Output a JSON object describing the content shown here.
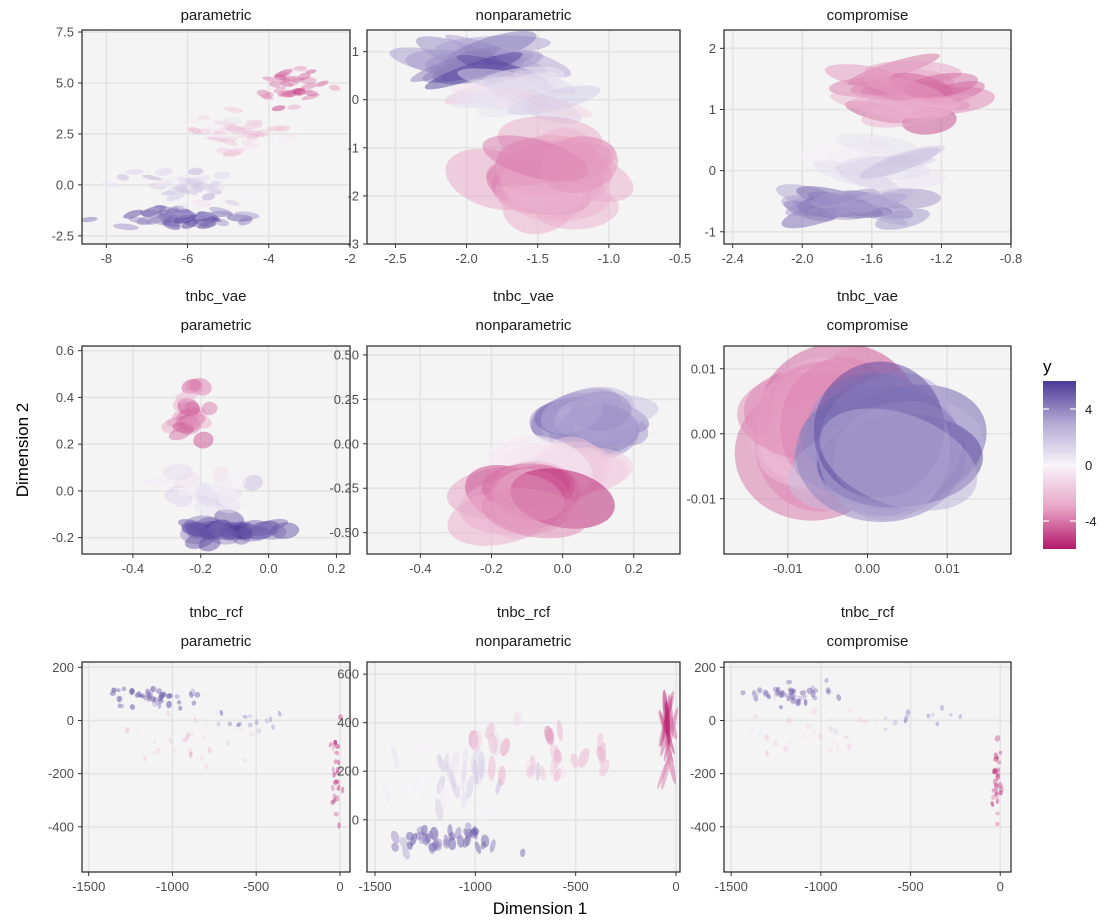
{
  "figure": {
    "xlabel": "Dimension 1",
    "ylabel": "Dimension 2",
    "legend": {
      "title": "y",
      "ticks": [
        "4",
        "0",
        "-4"
      ],
      "tick_values": [
        4,
        0,
        -4
      ],
      "range": [
        -6,
        6
      ],
      "colors": [
        "#b5186b",
        "#e8a6c6",
        "#f7f4f9",
        "#b3aad4",
        "#4b3a97"
      ]
    }
  },
  "chart_data": [
    {
      "type": "scatter",
      "title": "parametric",
      "xlim": [
        -8.6,
        -2
      ],
      "ylim": [
        -2.9,
        7.6
      ],
      "xticks": [
        -8,
        -6,
        -4,
        -2
      ],
      "xtick_labels": [
        "-8",
        "-6",
        "-4",
        "-2"
      ],
      "yticks": [
        -2.5,
        0,
        2.5,
        5,
        7.5
      ],
      "ytick_labels": [
        "-2.5",
        "0.0",
        "2.5",
        "5.0",
        "7.5"
      ],
      "clusters": [
        {
          "x": -6.2,
          "y": -1.6,
          "sx": 1.1,
          "sy": 0.35,
          "col": 4.5,
          "n": 45,
          "rx": 0.25,
          "ry": 0.17
        },
        {
          "x": -6.0,
          "y": 0.0,
          "sx": 1.0,
          "sy": 0.8,
          "col": 1.5,
          "n": 40,
          "rx": 0.2,
          "ry": 0.15
        },
        {
          "x": -4.8,
          "y": 2.5,
          "sx": 0.8,
          "sy": 0.8,
          "col": -1.5,
          "n": 35,
          "rx": 0.2,
          "ry": 0.14
        },
        {
          "x": -3.5,
          "y": 4.8,
          "sx": 0.6,
          "sy": 0.9,
          "col": -4,
          "n": 35,
          "rx": 0.18,
          "ry": 0.14
        }
      ]
    },
    {
      "type": "scatter",
      "title": "nonparametric",
      "xlim": [
        -2.7,
        -0.5
      ],
      "ylim": [
        -3,
        1.45
      ],
      "xticks": [
        -2.5,
        -2.0,
        -1.5,
        -1.0,
        -0.5
      ],
      "xtick_labels": [
        "-2.5",
        "-2.0",
        "-1.5",
        "-1.0",
        "-0.5"
      ],
      "yticks": [
        -3,
        -2,
        -1,
        0,
        1
      ],
      "ytick_labels": [
        "-3",
        "-2",
        "-1",
        "0",
        "1"
      ],
      "clusters": [
        {
          "x": -1.9,
          "y": 0.75,
          "sx": 0.28,
          "sy": 0.25,
          "col": 4,
          "n": 18,
          "rx": 0.34,
          "ry": 0.2
        },
        {
          "x": -1.6,
          "y": 0.1,
          "sx": 0.3,
          "sy": 0.3,
          "col": 0.5,
          "n": 14,
          "rx": 0.32,
          "ry": 0.22
        },
        {
          "x": -1.4,
          "y": -1.6,
          "sx": 0.22,
          "sy": 0.5,
          "col": -3,
          "n": 24,
          "rx": 0.32,
          "ry": 0.5
        }
      ]
    },
    {
      "type": "scatter",
      "title": "compromise",
      "xlim": [
        -2.45,
        -0.8
      ],
      "ylim": [
        -1.2,
        2.3
      ],
      "xticks": [
        -2.4,
        -2.0,
        -1.6,
        -1.2,
        -0.8
      ],
      "xtick_labels": [
        "-2.4",
        "-2.0",
        "-1.6",
        "-1.2",
        "-0.8"
      ],
      "yticks": [
        -1,
        0,
        1,
        2
      ],
      "ytick_labels": [
        "-1",
        "0",
        "1",
        "2"
      ],
      "clusters": [
        {
          "x": -1.8,
          "y": -0.6,
          "sx": 0.25,
          "sy": 0.2,
          "col": 4,
          "n": 22,
          "rx": 0.2,
          "ry": 0.14
        },
        {
          "x": -1.6,
          "y": 0.2,
          "sx": 0.25,
          "sy": 0.3,
          "col": 0.5,
          "n": 16,
          "rx": 0.2,
          "ry": 0.15
        },
        {
          "x": -1.4,
          "y": 1.3,
          "sx": 0.22,
          "sy": 0.4,
          "col": -3.5,
          "n": 22,
          "rx": 0.22,
          "ry": 0.18
        }
      ]
    },
    {
      "type": "scatter",
      "subtitle": "tnbc_vae",
      "title": "parametric",
      "xlim": [
        -0.55,
        0.24
      ],
      "ylim": [
        -0.27,
        0.62
      ],
      "xticks": [
        -0.4,
        -0.2,
        0.0,
        0.2
      ],
      "xtick_labels": [
        "-0.4",
        "-0.2",
        "0.0",
        "0.2"
      ],
      "yticks": [
        -0.2,
        0.0,
        0.2,
        0.4,
        0.6
      ],
      "ytick_labels": [
        "-0.2",
        "0.0",
        "0.2",
        "0.4",
        "0.6"
      ],
      "clusters": [
        {
          "x": -0.12,
          "y": -0.17,
          "sx": 0.12,
          "sy": 0.03,
          "col": 4.5,
          "n": 45,
          "rx": 0.04,
          "ry": 0.03
        },
        {
          "x": -0.18,
          "y": -0.02,
          "sx": 0.12,
          "sy": 0.07,
          "col": 0.5,
          "n": 35,
          "rx": 0.035,
          "ry": 0.03
        },
        {
          "x": -0.24,
          "y": 0.3,
          "sx": 0.05,
          "sy": 0.12,
          "col": -3.5,
          "n": 25,
          "rx": 0.03,
          "ry": 0.03
        }
      ]
    },
    {
      "type": "scatter",
      "subtitle": "tnbc_vae",
      "title": "nonparametric",
      "xlim": [
        -0.55,
        0.33
      ],
      "ylim": [
        -0.62,
        0.55
      ],
      "xticks": [
        -0.4,
        -0.2,
        0.0,
        0.2
      ],
      "xtick_labels": [
        "-0.4",
        "-0.2",
        "0.0",
        "0.2"
      ],
      "yticks": [
        -0.5,
        -0.25,
        0.0,
        0.25,
        0.5
      ],
      "ytick_labels": [
        "-0.50",
        "-0.25",
        "0.00",
        "0.25",
        "0.50"
      ],
      "clusters": [
        {
          "x": 0.08,
          "y": 0.15,
          "sx": 0.08,
          "sy": 0.1,
          "col": 3.5,
          "n": 16,
          "rx": 0.11,
          "ry": 0.13
        },
        {
          "x": -0.05,
          "y": -0.15,
          "sx": 0.12,
          "sy": 0.12,
          "col": -1,
          "n": 14,
          "rx": 0.12,
          "ry": 0.14
        },
        {
          "x": -0.1,
          "y": -0.3,
          "sx": 0.08,
          "sy": 0.08,
          "col": -3.5,
          "n": 12,
          "rx": 0.13,
          "ry": 0.14
        }
      ]
    },
    {
      "type": "scatter",
      "subtitle": "tnbc_vae",
      "title": "compromise",
      "xlim": [
        -0.018,
        0.018
      ],
      "ylim": [
        -0.0185,
        0.0135
      ],
      "xticks": [
        -0.01,
        0.0,
        0.01
      ],
      "xtick_labels": [
        "-0.01",
        "0.00",
        "0.01"
      ],
      "yticks": [
        -0.01,
        0.0,
        0.01
      ],
      "ytick_labels": [
        "-0.01",
        "0.00",
        "0.01"
      ],
      "clusters": [
        {
          "x": -0.004,
          "y": 0.002,
          "sx": 0.003,
          "sy": 0.003,
          "col": -3,
          "n": 14,
          "rx": 0.009,
          "ry": 0.009
        },
        {
          "x": 0.003,
          "y": -0.002,
          "sx": 0.003,
          "sy": 0.003,
          "col": 3.5,
          "n": 16,
          "rx": 0.009,
          "ry": 0.009
        }
      ]
    },
    {
      "type": "scatter",
      "subtitle": "tnbc_rcf",
      "title": "parametric",
      "xlim": [
        -1540,
        60
      ],
      "ylim": [
        -570,
        220
      ],
      "xticks": [
        -1500,
        -1000,
        -500,
        0
      ],
      "xtick_labels": [
        "-1500",
        "-1000",
        "-500",
        "0"
      ],
      "yticks": [
        -400,
        -200,
        0,
        200
      ],
      "ytick_labels": [
        "-400",
        "-200",
        "0",
        "200"
      ],
      "clusters": [
        {
          "x": -1150,
          "y": 90,
          "sx": 250,
          "sy": 35,
          "col": 4.5,
          "n": 45,
          "rx": 14,
          "ry": 11
        },
        {
          "x": -1000,
          "y": -80,
          "sx": 350,
          "sy": 90,
          "col": -1,
          "n": 35,
          "rx": 12,
          "ry": 10
        },
        {
          "x": -20,
          "y": -200,
          "sx": 25,
          "sy": 140,
          "col": -4.5,
          "n": 30,
          "rx": 12,
          "ry": 10
        },
        {
          "x": -500,
          "y": -10,
          "sx": 250,
          "sy": 40,
          "col": 3,
          "n": 14,
          "rx": 12,
          "ry": 9
        }
      ]
    },
    {
      "type": "scatter",
      "subtitle": "tnbc_rcf",
      "title": "nonparametric",
      "xlim": [
        -1540,
        20
      ],
      "ylim": [
        -215,
        650
      ],
      "xticks": [
        -1500,
        -1000,
        -500,
        0
      ],
      "xtick_labels": [
        "-1500",
        "-1000",
        "-500",
        "0"
      ],
      "yticks": [
        0,
        200,
        400,
        600
      ],
      "ytick_labels": [
        "0",
        "200",
        "400",
        "600"
      ],
      "clusters": [
        {
          "x": -1150,
          "y": -80,
          "sx": 250,
          "sy": 45,
          "col": 4.5,
          "n": 45,
          "rx": 16,
          "ry": 22
        },
        {
          "x": -1100,
          "y": 150,
          "sx": 250,
          "sy": 110,
          "col": 1,
          "n": 30,
          "rx": 16,
          "ry": 45
        },
        {
          "x": -650,
          "y": 280,
          "sx": 320,
          "sy": 110,
          "col": -2,
          "n": 28,
          "rx": 20,
          "ry": 40
        },
        {
          "x": -40,
          "y": 350,
          "sx": 15,
          "sy": 140,
          "col": -4.5,
          "n": 16,
          "rx": 12,
          "ry": 90
        }
      ]
    },
    {
      "type": "scatter",
      "subtitle": "tnbc_rcf",
      "title": "compromise",
      "xlim": [
        -1540,
        60
      ],
      "ylim": [
        -570,
        220
      ],
      "xticks": [
        -1500,
        -1000,
        -500,
        0
      ],
      "xtick_labels": [
        "-1500",
        "-1000",
        "-500",
        "0"
      ],
      "yticks": [
        -400,
        -200,
        0,
        200
      ],
      "ytick_labels": [
        "-400",
        "-200",
        "0",
        "200"
      ],
      "clusters": [
        {
          "x": -1150,
          "y": 100,
          "sx": 220,
          "sy": 30,
          "col": 4.5,
          "n": 45,
          "rx": 14,
          "ry": 11
        },
        {
          "x": -1000,
          "y": -60,
          "sx": 350,
          "sy": 90,
          "col": -1,
          "n": 35,
          "rx": 12,
          "ry": 10
        },
        {
          "x": -20,
          "y": -230,
          "sx": 25,
          "sy": 140,
          "col": -4.5,
          "n": 30,
          "rx": 12,
          "ry": 10
        },
        {
          "x": -500,
          "y": 0,
          "sx": 250,
          "sy": 40,
          "col": 3,
          "n": 14,
          "rx": 12,
          "ry": 9
        }
      ]
    }
  ]
}
